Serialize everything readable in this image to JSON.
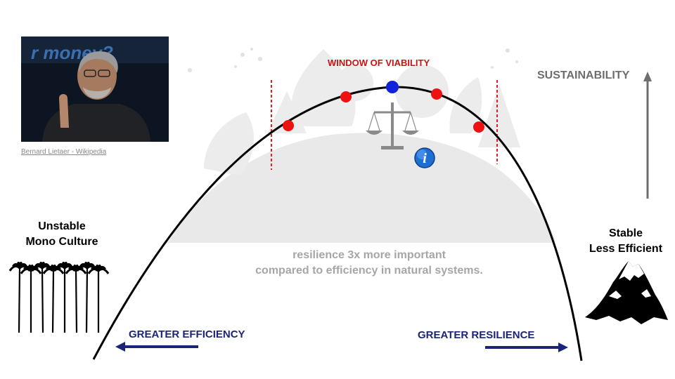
{
  "photo": {
    "caption": "Bernard Lietaer - Wikipedia",
    "background_text": "r money?"
  },
  "left_label": "Unstable\nMono Culture",
  "right_label": "Stable\nLess Efficient",
  "center_text": "resilience 3x more important\ncompared to efficiency in natural systems.",
  "window_label": "WINDOW OF VIABILITY",
  "axis_label": "SUSTAINABILITY",
  "efficiency_label": "GREATER EFFICIENCY",
  "resilience_label": "GREATER RESILIENCE",
  "info_glyph": "i",
  "colors": {
    "red_dot": "#ee1111",
    "blue_dot": "#1122dd",
    "arrow_navy": "#1c2478",
    "axis_gray": "#6e6e6e",
    "window_red": "#cc1111",
    "hill_gray": "#e8e8e8"
  },
  "icons": [
    "palm-trees-icon",
    "mountain-icon",
    "balance-scale-icon",
    "info-icon"
  ]
}
